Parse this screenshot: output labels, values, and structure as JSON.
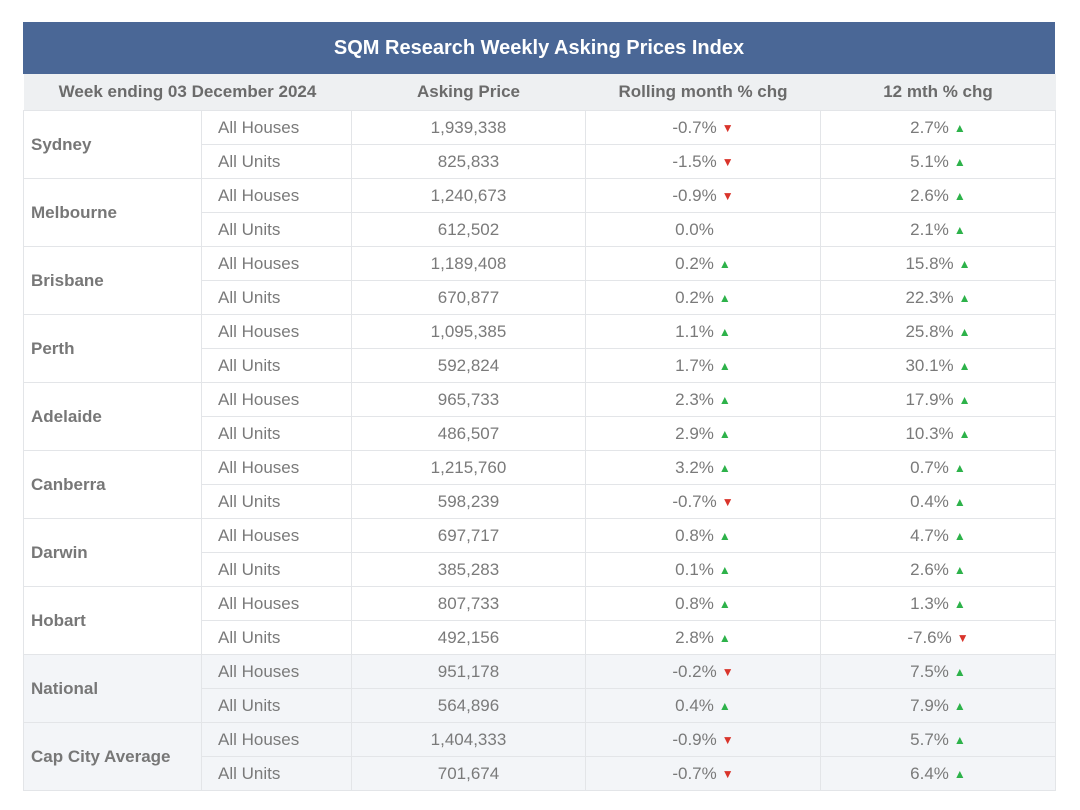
{
  "title": "SQM Research Weekly Asking Prices Index",
  "headers": {
    "week": "Week ending 03 December 2024",
    "price": "Asking Price",
    "month": "Rolling month % chg",
    "year": "12 mth % chg"
  },
  "colors": {
    "header_bar": "#4a6796",
    "up": "#2db24a",
    "down": "#d9342b"
  },
  "icons": {
    "up": "triangle-up-icon",
    "down": "triangle-down-icon"
  },
  "rows": [
    {
      "city": "Sydney",
      "shaded": false,
      "items": [
        {
          "type": "All Houses",
          "price": "1,939,338",
          "month": "-0.7%",
          "month_dir": "down",
          "year": "2.7%",
          "year_dir": "up"
        },
        {
          "type": "All Units",
          "price": "825,833",
          "month": "-1.5%",
          "month_dir": "down",
          "year": "5.1%",
          "year_dir": "up"
        }
      ]
    },
    {
      "city": "Melbourne",
      "shaded": false,
      "items": [
        {
          "type": "All Houses",
          "price": "1,240,673",
          "month": "-0.9%",
          "month_dir": "down",
          "year": "2.6%",
          "year_dir": "up"
        },
        {
          "type": "All Units",
          "price": "612,502",
          "month": "0.0%",
          "month_dir": "none",
          "year": "2.1%",
          "year_dir": "up"
        }
      ]
    },
    {
      "city": "Brisbane",
      "shaded": false,
      "items": [
        {
          "type": "All Houses",
          "price": "1,189,408",
          "month": "0.2%",
          "month_dir": "up",
          "year": "15.8%",
          "year_dir": "up"
        },
        {
          "type": "All Units",
          "price": "670,877",
          "month": "0.2%",
          "month_dir": "up",
          "year": "22.3%",
          "year_dir": "up"
        }
      ]
    },
    {
      "city": "Perth",
      "shaded": false,
      "items": [
        {
          "type": "All Houses",
          "price": "1,095,385",
          "month": "1.1%",
          "month_dir": "up",
          "year": "25.8%",
          "year_dir": "up"
        },
        {
          "type": "All Units",
          "price": "592,824",
          "month": "1.7%",
          "month_dir": "up",
          "year": "30.1%",
          "year_dir": "up"
        }
      ]
    },
    {
      "city": "Adelaide",
      "shaded": false,
      "items": [
        {
          "type": "All Houses",
          "price": "965,733",
          "month": "2.3%",
          "month_dir": "up",
          "year": "17.9%",
          "year_dir": "up"
        },
        {
          "type": "All Units",
          "price": "486,507",
          "month": "2.9%",
          "month_dir": "up",
          "year": "10.3%",
          "year_dir": "up"
        }
      ]
    },
    {
      "city": "Canberra",
      "shaded": false,
      "items": [
        {
          "type": "All Houses",
          "price": "1,215,760",
          "month": "3.2%",
          "month_dir": "up",
          "year": "0.7%",
          "year_dir": "up"
        },
        {
          "type": "All Units",
          "price": "598,239",
          "month": "-0.7%",
          "month_dir": "down",
          "year": "0.4%",
          "year_dir": "up"
        }
      ]
    },
    {
      "city": "Darwin",
      "shaded": false,
      "items": [
        {
          "type": "All Houses",
          "price": "697,717",
          "month": "0.8%",
          "month_dir": "up",
          "year": "4.7%",
          "year_dir": "up"
        },
        {
          "type": "All Units",
          "price": "385,283",
          "month": "0.1%",
          "month_dir": "up",
          "year": "2.6%",
          "year_dir": "up"
        }
      ]
    },
    {
      "city": "Hobart",
      "shaded": false,
      "items": [
        {
          "type": "All Houses",
          "price": "807,733",
          "month": "0.8%",
          "month_dir": "up",
          "year": "1.3%",
          "year_dir": "up"
        },
        {
          "type": "All Units",
          "price": "492,156",
          "month": "2.8%",
          "month_dir": "up",
          "year": "-7.6%",
          "year_dir": "down"
        }
      ]
    },
    {
      "city": "National",
      "shaded": true,
      "items": [
        {
          "type": "All Houses",
          "price": "951,178",
          "month": "-0.2%",
          "month_dir": "down",
          "year": "7.5%",
          "year_dir": "up"
        },
        {
          "type": "All Units",
          "price": "564,896",
          "month": "0.4%",
          "month_dir": "up",
          "year": "7.9%",
          "year_dir": "up"
        }
      ]
    },
    {
      "city": "Cap City Average",
      "shaded": true,
      "items": [
        {
          "type": "All Houses",
          "price": "1,404,333",
          "month": "-0.9%",
          "month_dir": "down",
          "year": "5.7%",
          "year_dir": "up"
        },
        {
          "type": "All Units",
          "price": "701,674",
          "month": "-0.7%",
          "month_dir": "down",
          "year": "6.4%",
          "year_dir": "up"
        }
      ]
    }
  ]
}
